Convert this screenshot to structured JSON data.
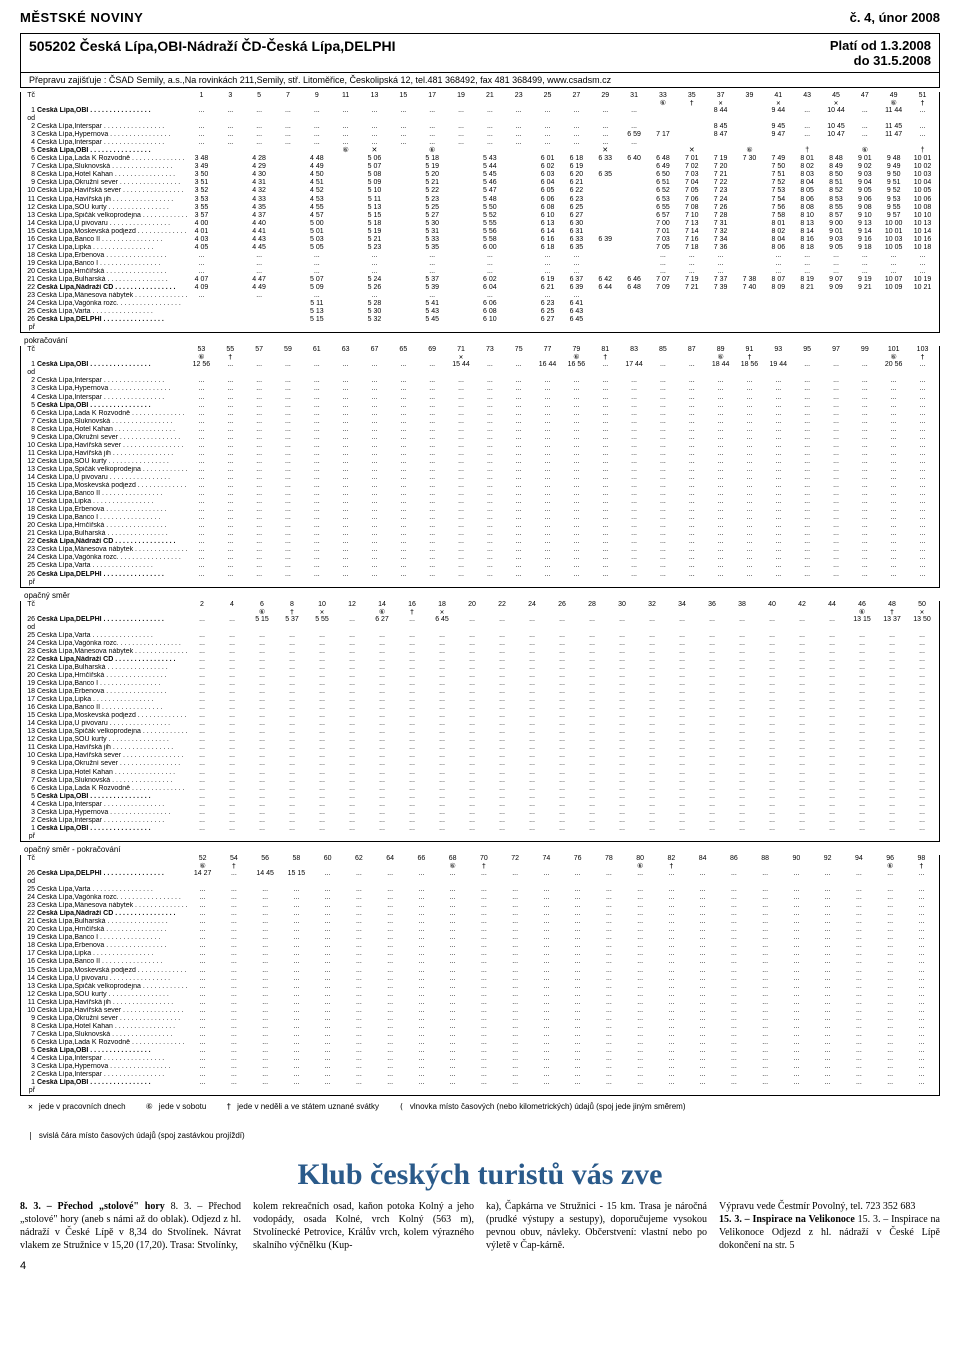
{
  "header": {
    "left": "MĚSTSKÉ NOVINY",
    "right": "č. 4, únor 2008"
  },
  "route": {
    "code_title": "505202  Česká Lípa,OBI-Nádraží ČD-Česká Lípa,DELPHI",
    "valid1": "Platí od 1.3.2008",
    "valid2": "do 31.5.2008",
    "operator": "Přepravu zajišťuje : ČSAD Semily, a.s.,Na rovinkách 211,Semily, stř. Litoměřice, Českolipská 12, tel.481 368492, fax 481 368499, www.csadsm.cz"
  },
  "tc_label": "Tč",
  "opposite": "opačný směr",
  "continuation": "pokračování",
  "opposite_cont": "opačný směr - pokračování",
  "stops_fwd": [
    {
      "n": "1",
      "od": true,
      "name": "Česká Lípa,OBI",
      "b": true
    },
    {
      "n": "2",
      "name": "Česká Lípa,Interspar"
    },
    {
      "n": "3",
      "name": "Česká Lípa,Hypernova"
    },
    {
      "n": "4",
      "name": "Česká Lípa,Interspar"
    },
    {
      "n": "5",
      "name": "Česká Lípa,OBI",
      "b": true
    },
    {
      "n": "6",
      "name": "Česká Lípa,Lada K Rozvodně"
    },
    {
      "n": "7",
      "name": "Česká Lípa,Sluknovská"
    },
    {
      "n": "8",
      "name": "Česká Lípa,Hotel Kahan"
    },
    {
      "n": "9",
      "name": "Česká Lípa,Okružní sever"
    },
    {
      "n": "10",
      "name": "Česká Lípa,Havířská sever"
    },
    {
      "n": "11",
      "name": "Česká Lípa,Havířská jih"
    },
    {
      "n": "12",
      "name": "Česká Lípa,SOU kurty"
    },
    {
      "n": "13",
      "name": "Česká Lípa,Špičák velkoprodejna"
    },
    {
      "n": "14",
      "name": "Česká Lípa,U pivovaru"
    },
    {
      "n": "15",
      "name": "Česká Lípa,Moskevská podjezd"
    },
    {
      "n": "16",
      "name": "Česká Lípa,Banco II"
    },
    {
      "n": "17",
      "name": "Česká Lípa,Lipka"
    },
    {
      "n": "18",
      "name": "Česká Lípa,Erbenova"
    },
    {
      "n": "19",
      "name": "Česká Lípa,Banco I"
    },
    {
      "n": "20",
      "name": "Česká Lípa,Hrnčířská"
    },
    {
      "n": "21",
      "name": "Česká Lípa,Bulharská"
    },
    {
      "n": "22",
      "name": "Česká Lípa,Nádraží ČD",
      "b": true
    },
    {
      "n": "23",
      "name": "Česká Lípa,Mánesova nábytek"
    },
    {
      "n": "24",
      "name": "Česká Lípa,Vagónka rozc."
    },
    {
      "n": "25",
      "name": "Česká Lípa,Varta"
    },
    {
      "n": "26",
      "pr": true,
      "name": "Česká Lípa,DELPHI",
      "b": true
    }
  ],
  "stops_rev": [
    {
      "n": "26",
      "od": true,
      "name": "Česká Lípa,DELPHI",
      "b": true
    },
    {
      "n": "25",
      "name": "Česká Lípa,Varta"
    },
    {
      "n": "24",
      "name": "Česká Lípa,Vagónka rozc."
    },
    {
      "n": "23",
      "name": "Česká Lípa,Mánesova nábytek"
    },
    {
      "n": "22",
      "name": "Česká Lípa,Nádraží ČD",
      "b": true
    },
    {
      "n": "21",
      "name": "Česká Lípa,Bulharská"
    },
    {
      "n": "20",
      "name": "Česká Lípa,Hrnčířská"
    },
    {
      "n": "19",
      "name": "Česká Lípa,Banco I"
    },
    {
      "n": "18",
      "name": "Česká Lípa,Erbenova"
    },
    {
      "n": "17",
      "name": "Česká Lípa,Lipka"
    },
    {
      "n": "16",
      "name": "Česká Lípa,Banco II"
    },
    {
      "n": "15",
      "name": "Česká Lípa,Moskevská podjezd"
    },
    {
      "n": "14",
      "name": "Česká Lípa,U pivovaru"
    },
    {
      "n": "13",
      "name": "Česká Lípa,Špičák velkoprodejna"
    },
    {
      "n": "12",
      "name": "Česká Lípa,SOU kurty"
    },
    {
      "n": "11",
      "name": "Česká Lípa,Havířská jih"
    },
    {
      "n": "10",
      "name": "Česká Lípa,Havířská sever"
    },
    {
      "n": "9",
      "name": "Česká Lípa,Okružní sever"
    },
    {
      "n": "8",
      "name": "Česká Lípa,Hotel Kahan"
    },
    {
      "n": "7",
      "name": "Česká Lípa,Sluknovská"
    },
    {
      "n": "6",
      "name": "Česká Lípa,Lada K Rozvodně"
    },
    {
      "n": "5",
      "name": "Česká Lípa,OBI",
      "b": true
    },
    {
      "n": "4",
      "name": "Česká Lípa,Interspar"
    },
    {
      "n": "3",
      "name": "Česká Lípa,Hypernova"
    },
    {
      "n": "2",
      "name": "Česká Lípa,Interspar"
    },
    {
      "n": "1",
      "pr": true,
      "name": "Česká Lípa,OBI",
      "b": true
    }
  ],
  "cols1": [
    "1",
    "3",
    "5",
    "7",
    "9",
    "11",
    "13",
    "15",
    "17",
    "19",
    "21",
    "23",
    "25",
    "27",
    "29",
    "31",
    "33",
    "35",
    "37",
    "39",
    "41",
    "43",
    "45",
    "47",
    "49",
    "51"
  ],
  "sym1": [
    "",
    "",
    "",
    "",
    "",
    "",
    "",
    "",
    "",
    "",
    "",
    "",
    "",
    "",
    "",
    "",
    "⑥",
    "†",
    "✕",
    "",
    "✕",
    "",
    "✕",
    "",
    "⑥",
    "†"
  ],
  "times1": [
    [
      "...",
      "...",
      "...",
      "...",
      "...",
      "...",
      "...",
      "...",
      "...",
      "...",
      "...",
      "...",
      "...",
      "...",
      "...",
      "...",
      "",
      "",
      "8 44",
      "",
      "9 44",
      "...",
      "10 44",
      "...",
      "11 44",
      "..."
    ],
    [
      "...",
      "...",
      "...",
      "...",
      "...",
      "...",
      "...",
      "...",
      "...",
      "...",
      "...",
      "...",
      "...",
      "...",
      "...",
      "...",
      "",
      "",
      "8 45",
      "",
      "9 45",
      "...",
      "10 45",
      "...",
      "11 45",
      "..."
    ],
    [
      "...",
      "...",
      "...",
      "...",
      "...",
      "...",
      "...",
      "...",
      "...",
      "...",
      "...",
      "...",
      "...",
      "...",
      "...",
      "6 59",
      "7 17",
      "",
      "8 47",
      "",
      "9 47",
      "...",
      "10 47",
      "...",
      "11 47",
      "..."
    ],
    [
      "...",
      "...",
      "...",
      "...",
      "...",
      "...",
      "...",
      "...",
      "...",
      "...",
      "...",
      "...",
      "...",
      "...",
      "...",
      "...",
      "",
      "",
      "",
      "",
      "",
      "",
      "",
      "",
      "",
      ""
    ],
    [
      "",
      "",
      "",
      "",
      "",
      "⑥",
      "✕",
      "",
      "⑥",
      "",
      "",
      "",
      "",
      "",
      "✕",
      "",
      "",
      "✕",
      "",
      "⑥",
      "",
      "†",
      "",
      "⑥",
      "",
      "†"
    ],
    [
      "3 48",
      "",
      "4 28",
      "",
      "4 48",
      "",
      "5 06",
      "",
      "5 18",
      "",
      "5 43",
      "",
      "6 01",
      "6 18",
      "6 33",
      "6 40",
      "6 48",
      "7 01",
      "7 19",
      "7 30",
      "7 49",
      "8 01",
      "8 48",
      "9 01",
      "9 48",
      "10 01"
    ],
    [
      "3 49",
      "",
      "4 29",
      "",
      "4 49",
      "",
      "5 07",
      "",
      "5 19",
      "",
      "5 44",
      "",
      "6 02",
      "6 19",
      "",
      "",
      "6 49",
      "7 02",
      "7 20",
      "",
      "7 50",
      "8 02",
      "8 49",
      "9 02",
      "9 49",
      "10 02"
    ],
    [
      "3 50",
      "",
      "4 30",
      "",
      "4 50",
      "",
      "5 08",
      "",
      "5 20",
      "",
      "5 45",
      "",
      "6 03",
      "6 20",
      "6 35",
      "",
      "6 50",
      "7 03",
      "7 21",
      "",
      "7 51",
      "8 03",
      "8 50",
      "9 03",
      "9 50",
      "10 03"
    ],
    [
      "3 51",
      "",
      "4 31",
      "",
      "4 51",
      "",
      "5 09",
      "",
      "5 21",
      "",
      "5 46",
      "",
      "6 04",
      "6 21",
      "",
      "",
      "6 51",
      "7 04",
      "7 22",
      "",
      "7 52",
      "8 04",
      "8 51",
      "9 04",
      "9 51",
      "10 04"
    ],
    [
      "3 52",
      "",
      "4 32",
      "",
      "4 52",
      "",
      "5 10",
      "",
      "5 22",
      "",
      "5 47",
      "",
      "6 05",
      "6 22",
      "",
      "",
      "6 52",
      "7 05",
      "7 23",
      "",
      "7 53",
      "8 05",
      "8 52",
      "9 05",
      "9 52",
      "10 05"
    ],
    [
      "3 53",
      "",
      "4 33",
      "",
      "4 53",
      "",
      "5 11",
      "",
      "5 23",
      "",
      "5 48",
      "",
      "6 06",
      "6 23",
      "",
      "",
      "6 53",
      "7 06",
      "7 24",
      "",
      "7 54",
      "8 06",
      "8 53",
      "9 06",
      "9 53",
      "10 06"
    ],
    [
      "3 55",
      "",
      "4 35",
      "",
      "4 55",
      "",
      "5 13",
      "",
      "5 25",
      "",
      "5 50",
      "",
      "6 08",
      "6 25",
      "",
      "",
      "6 55",
      "7 08",
      "7 26",
      "",
      "7 56",
      "8 08",
      "8 55",
      "9 08",
      "9 55",
      "10 08"
    ],
    [
      "3 57",
      "",
      "4 37",
      "",
      "4 57",
      "",
      "5 15",
      "",
      "5 27",
      "",
      "5 52",
      "",
      "6 10",
      "6 27",
      "",
      "",
      "6 57",
      "7 10",
      "7 28",
      "",
      "7 58",
      "8 10",
      "8 57",
      "9 10",
      "9 57",
      "10 10"
    ],
    [
      "4 00",
      "",
      "4 40",
      "",
      "5 00",
      "",
      "5 18",
      "",
      "5 30",
      "",
      "5 55",
      "",
      "6 13",
      "6 30",
      "",
      "",
      "7 00",
      "7 13",
      "7 31",
      "",
      "8 01",
      "8 13",
      "9 00",
      "9 13",
      "10 00",
      "10 13"
    ],
    [
      "4 01",
      "",
      "4 41",
      "",
      "5 01",
      "",
      "5 19",
      "",
      "5 31",
      "",
      "5 56",
      "",
      "6 14",
      "6 31",
      "",
      "",
      "7 01",
      "7 14",
      "7 32",
      "",
      "8 02",
      "8 14",
      "9 01",
      "9 14",
      "10 01",
      "10 14"
    ],
    [
      "4 03",
      "",
      "4 43",
      "",
      "5 03",
      "",
      "5 21",
      "",
      "5 33",
      "",
      "5 58",
      "",
      "6 16",
      "6 33",
      "6 39",
      "",
      "7 03",
      "7 16",
      "7 34",
      "",
      "8 04",
      "8 16",
      "9 03",
      "9 16",
      "10 03",
      "10 16"
    ],
    [
      "4 05",
      "",
      "4 45",
      "",
      "5 05",
      "",
      "5 23",
      "",
      "5 35",
      "",
      "6 00",
      "",
      "6 18",
      "6 35",
      "",
      "",
      "7 05",
      "7 18",
      "7 36",
      "",
      "8 06",
      "8 18",
      "9 05",
      "9 18",
      "10 05",
      "10 18"
    ],
    [
      "...",
      "",
      "...",
      "",
      "...",
      "",
      "...",
      "",
      "...",
      "",
      "...",
      "",
      "...",
      "...",
      "",
      "",
      "...",
      "...",
      "...",
      "",
      "...",
      "...",
      "...",
      "...",
      "...",
      "..."
    ],
    [
      "...",
      "",
      "...",
      "",
      "...",
      "",
      "...",
      "",
      "...",
      "",
      "...",
      "",
      "...",
      "...",
      "",
      "",
      "...",
      "...",
      "...",
      "",
      "...",
      "...",
      "...",
      "...",
      "...",
      "..."
    ],
    [
      "...",
      "",
      "...",
      "",
      "...",
      "",
      "...",
      "",
      "...",
      "",
      "...",
      "",
      "...",
      "...",
      "",
      "",
      "...",
      "...",
      "...",
      "",
      "...",
      "...",
      "...",
      "...",
      "...",
      "..."
    ],
    [
      "4 07",
      "",
      "4 47",
      "",
      "5 07",
      "",
      "5 24",
      "",
      "5 37",
      "",
      "6 02",
      "",
      "6 19",
      "6 37",
      "6 42",
      "6 46",
      "7 07",
      "7 19",
      "7 37",
      "7 38",
      "8 07",
      "8 19",
      "9 07",
      "9 19",
      "10 07",
      "10 19"
    ],
    [
      "4 09",
      "",
      "4 49",
      "",
      "5 09",
      "",
      "5 26",
      "",
      "5 39",
      "",
      "6 04",
      "",
      "6 21",
      "6 39",
      "6 44",
      "6 48",
      "7 09",
      "7 21",
      "7 39",
      "7 40",
      "8 09",
      "8 21",
      "9 09",
      "9 21",
      "10 09",
      "10 21"
    ],
    [
      "...",
      "",
      "...",
      "",
      "...",
      "",
      "...",
      "",
      "...",
      "",
      "...",
      "",
      "...",
      "...",
      "",
      "",
      "",
      "",
      "",
      "",
      "",
      "",
      "",
      "",
      "",
      ""
    ],
    [
      "",
      "",
      "",
      "",
      "5 11",
      "",
      "5 28",
      "",
      "5 41",
      "",
      "6 06",
      "",
      "6 23",
      "6 41",
      "",
      "",
      "",
      "",
      "",
      "",
      "",
      "",
      "",
      "",
      "",
      ""
    ],
    [
      "",
      "",
      "",
      "",
      "5 13",
      "",
      "5 30",
      "",
      "5 43",
      "",
      "6 08",
      "",
      "6 25",
      "6 43",
      "",
      "",
      "",
      "",
      "",
      "",
      "",
      "",
      "",
      "",
      "",
      ""
    ],
    [
      "",
      "",
      "",
      "",
      "5 15",
      "",
      "5 32",
      "",
      "5 45",
      "",
      "6 10",
      "",
      "6 27",
      "6 45",
      "",
      "",
      "",
      "",
      "",
      "",
      "",
      "",
      "",
      "",
      "",
      ""
    ]
  ],
  "cols2": [
    "53",
    "55",
    "57",
    "59",
    "61",
    "63",
    "67",
    "65",
    "69",
    "71",
    "73",
    "75",
    "77",
    "79",
    "81",
    "83",
    "85",
    "87",
    "89",
    "91",
    "93",
    "95",
    "97",
    "99",
    "101",
    "103"
  ],
  "sym2": [
    "⑥",
    "†",
    "",
    "",
    "",
    "",
    "",
    "",
    "",
    "✕",
    "",
    "",
    "",
    "⑥",
    "†",
    "",
    "",
    "",
    "⑥",
    "†",
    "",
    "",
    "",
    "",
    "⑥",
    "†"
  ],
  "times2_sample": [
    "12 56",
    "",
    "",
    "",
    "",
    "",
    "",
    "",
    "",
    "15 44",
    "",
    "",
    "16 44",
    "16 56",
    "",
    "17 44",
    "",
    "",
    "18 44",
    "18 56",
    "19 44",
    "",
    "",
    "",
    "20 56",
    ""
  ],
  "cols3": [
    "2",
    "4",
    "6",
    "8",
    "10",
    "12",
    "14",
    "16",
    "18",
    "20",
    "22",
    "24",
    "26",
    "28",
    "30",
    "32",
    "34",
    "36",
    "38",
    "40",
    "42",
    "44",
    "46",
    "48",
    "50"
  ],
  "sym3": [
    "",
    "",
    "⑥",
    "†",
    "✕",
    "",
    "⑥",
    "†",
    "✕",
    "",
    "",
    "",
    "",
    "",
    "",
    "",
    "",
    "",
    "",
    "",
    "",
    "",
    "⑥",
    "†",
    "✕"
  ],
  "times3_sample": [
    "",
    "",
    "5 15",
    "5 37",
    "5 55",
    "",
    "6 27",
    "",
    "6 45",
    "",
    "",
    "",
    "",
    "",
    "",
    "",
    "",
    "",
    "",
    "",
    "",
    "",
    "13 15",
    "13 37",
    "13 50"
  ],
  "cols4": [
    "52",
    "54",
    "56",
    "58",
    "60",
    "62",
    "64",
    "66",
    "68",
    "70",
    "72",
    "74",
    "76",
    "78",
    "80",
    "82",
    "84",
    "86",
    "88",
    "90",
    "92",
    "94",
    "96",
    "98"
  ],
  "sym4": [
    "⑥",
    "†",
    "",
    "",
    "",
    "",
    "",
    "",
    "⑥",
    "†",
    "",
    "",
    "",
    "",
    "⑥",
    "†",
    "",
    "",
    "",
    "",
    "",
    "",
    "⑥",
    "†"
  ],
  "times4_sample": [
    "14 27",
    "",
    "14 45",
    "15 15",
    "",
    "",
    "",
    "",
    "",
    "",
    "",
    "",
    "",
    "",
    "",
    "",
    "",
    "",
    "",
    "",
    "",
    "",
    "",
    ""
  ],
  "legend": {
    "l1_sym": "✕",
    "l1": "jede v pracovních dnech",
    "l2_sym": "⑥",
    "l2": "jede v sobotu",
    "l3_sym": "†",
    "l3": "jede v neděli a ve státem uznané svátky",
    "l4_sym": "(",
    "l4": "vlnovka místo časových (nebo kilometrických) údajů (spoj jede jiným směrem)",
    "l5_sym": "|",
    "l5": "svislá čára místo časových údajů (spoj zastávkou projíždí)"
  },
  "article": {
    "title": "Klub českých turistů vás zve",
    "p1": "8. 3. – Přechod „stolové\" hory (aneb s námi až do oblak). Odjezd z hl. nádraží v České Lípě v 8,34 do Stvolínek. Návrat vlakem ze Stružnice v 15,20 (17,20). Trasa: Stvolínky,",
    "p2": "kolem rekreačních osad, kaňon potoka Kolný a jeho vodopády, osada Kolné, vrch Kolný (563 m), Stvolínecké Petrovice, Králův vrch, kolem výrazného skalního výčnělku (Kup-",
    "p3": "ka), Čapkárna ve Stružnici - 15 km. Trasa je náročná (prudké výstupy a sestupy), doporučujeme vysokou pevnou obuv, návleky. Občerstvení: vlastní nebo po výletě v Čap-kárně.",
    "p4": "Výpravu vede Čestmír Povolný, tel. 723 352 683",
    "p5": "15. 3. – Inspirace na Velikonoce Odjezd z hl. nádraží v České Lípě dokončení na str. 5"
  },
  "footer": "4"
}
